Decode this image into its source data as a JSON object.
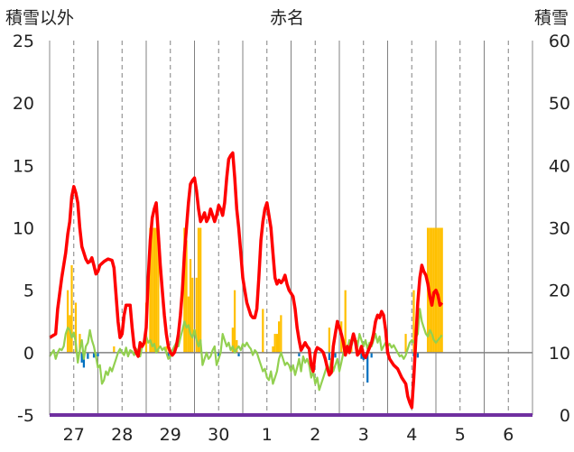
{
  "chart_data": {
    "type": "bar+line",
    "title": "赤名",
    "ylabel_left": "積雪以外",
    "ylabel_right": "積雪",
    "ylim_left": [
      -5,
      25
    ],
    "ylim_right": [
      0,
      60
    ],
    "yticks_left": [
      "25",
      "20",
      "15",
      "10",
      "5",
      "0",
      "-5"
    ],
    "yticks_right": [
      "60",
      "50",
      "40",
      "30",
      "20",
      "10",
      "0"
    ],
    "categories": [
      "27",
      "28",
      "29",
      "30",
      "1",
      "2",
      "3",
      "4",
      "5",
      "6"
    ],
    "x_range": [
      0,
      240
    ],
    "colors": {
      "red_line": "#ff0000",
      "green_line": "#92d050",
      "orange_bar": "#ffc000",
      "blue_bar": "#0070c0",
      "baseline": "#7030a0",
      "zero_line": "#808080",
      "grid": "#808080"
    },
    "red_series": [
      [
        0,
        1.2
      ],
      [
        3,
        1.5
      ],
      [
        4,
        3.5
      ],
      [
        6,
        6
      ],
      [
        8,
        8
      ],
      [
        9,
        9.5
      ],
      [
        10,
        10.5
      ],
      [
        11,
        12.5
      ],
      [
        12,
        13.3
      ],
      [
        13,
        12.8
      ],
      [
        14,
        12
      ],
      [
        15,
        10
      ],
      [
        16,
        8.5
      ],
      [
        17,
        8
      ],
      [
        18,
        7.5
      ],
      [
        19,
        7.2
      ],
      [
        20,
        7.3
      ],
      [
        21,
        7.6
      ],
      [
        22,
        7
      ],
      [
        23,
        6.3
      ],
      [
        24,
        6.5
      ],
      [
        25,
        7
      ],
      [
        27,
        7.3
      ],
      [
        29,
        7.5
      ],
      [
        31,
        7.4
      ],
      [
        32,
        6.8
      ],
      [
        34,
        2.5
      ],
      [
        35,
        1.2
      ],
      [
        36,
        1.5
      ],
      [
        37,
        3
      ],
      [
        38,
        3.8
      ],
      [
        40,
        3.8
      ],
      [
        41,
        2
      ],
      [
        42,
        0.5
      ],
      [
        43,
        0
      ],
      [
        44,
        -0.3
      ],
      [
        45,
        0.8
      ],
      [
        46,
        0.5
      ],
      [
        47,
        0.8
      ],
      [
        48,
        2
      ],
      [
        49,
        6
      ],
      [
        50,
        9
      ],
      [
        51,
        10.8
      ],
      [
        52,
        11.5
      ],
      [
        53,
        12
      ],
      [
        54,
        9.5
      ],
      [
        55,
        7
      ],
      [
        56,
        5
      ],
      [
        57,
        3
      ],
      [
        58,
        1.5
      ],
      [
        59,
        0.5
      ],
      [
        60,
        0
      ],
      [
        61,
        -0.2
      ],
      [
        62,
        0
      ],
      [
        63,
        0.5
      ],
      [
        64,
        1.5
      ],
      [
        65,
        3
      ],
      [
        66,
        5
      ],
      [
        67,
        8
      ],
      [
        68,
        10
      ],
      [
        69,
        12
      ],
      [
        70,
        13.5
      ],
      [
        71,
        13.8
      ],
      [
        72,
        14
      ],
      [
        73,
        13
      ],
      [
        74,
        11.5
      ],
      [
        75,
        10.5
      ],
      [
        76,
        10.8
      ],
      [
        77,
        11.2
      ],
      [
        78,
        10.5
      ],
      [
        79,
        10.8
      ],
      [
        80,
        11.5
      ],
      [
        81,
        11
      ],
      [
        82,
        10.5
      ],
      [
        83,
        11
      ],
      [
        84,
        11.8
      ],
      [
        85,
        11.5
      ],
      [
        86,
        11
      ],
      [
        87,
        12
      ],
      [
        88,
        14
      ],
      [
        89,
        15.5
      ],
      [
        90,
        15.8
      ],
      [
        91,
        16
      ],
      [
        92,
        14
      ],
      [
        93,
        11.5
      ],
      [
        94,
        10
      ],
      [
        95,
        8
      ],
      [
        96,
        6
      ],
      [
        97,
        5
      ],
      [
        98,
        4
      ],
      [
        99,
        3.5
      ],
      [
        100,
        3
      ],
      [
        101,
        2.8
      ],
      [
        102,
        2.8
      ],
      [
        103,
        3.5
      ],
      [
        104,
        6
      ],
      [
        105,
        9
      ],
      [
        106,
        10.5
      ],
      [
        107,
        11.5
      ],
      [
        108,
        12
      ],
      [
        109,
        11
      ],
      [
        110,
        10
      ],
      [
        111,
        8
      ],
      [
        112,
        6
      ],
      [
        113,
        5.5
      ],
      [
        114,
        5.8
      ],
      [
        115,
        5.6
      ],
      [
        116,
        5.8
      ],
      [
        117,
        6.2
      ],
      [
        118,
        5.5
      ],
      [
        119,
        5
      ],
      [
        121,
        4.5
      ],
      [
        122,
        3.5
      ],
      [
        123,
        2
      ],
      [
        124,
        1
      ],
      [
        125,
        0.2
      ],
      [
        126,
        0.5
      ],
      [
        127,
        0.8
      ],
      [
        128,
        0.5
      ],
      [
        129,
        0.3
      ],
      [
        130,
        -1
      ],
      [
        131,
        -1.5
      ],
      [
        132,
        0
      ],
      [
        133,
        0.4
      ],
      [
        134,
        0.3
      ],
      [
        135,
        0.2
      ],
      [
        136,
        0
      ],
      [
        137,
        -0.5
      ],
      [
        138,
        -1.2
      ],
      [
        139,
        -1.8
      ],
      [
        140,
        -1.6
      ],
      [
        141,
        0.5
      ],
      [
        142,
        1.5
      ],
      [
        143,
        2.5
      ],
      [
        144,
        2
      ],
      [
        145,
        1.5
      ],
      [
        146,
        0.8
      ],
      [
        147,
        -0.2
      ],
      [
        148,
        0.5
      ],
      [
        149,
        0
      ],
      [
        150,
        0.8
      ],
      [
        151,
        1.5
      ],
      [
        152,
        0.9
      ],
      [
        153,
        -0.2
      ],
      [
        154,
        0
      ],
      [
        155,
        0.5
      ],
      [
        156,
        -0.2
      ],
      [
        157,
        -0.4
      ],
      [
        158,
        0
      ],
      [
        160,
        0.8
      ],
      [
        161,
        1.5
      ],
      [
        162,
        2.5
      ],
      [
        163,
        3
      ],
      [
        164,
        2.8
      ],
      [
        165,
        3.3
      ],
      [
        166,
        3
      ],
      [
        167,
        1.8
      ],
      [
        168,
        0
      ],
      [
        169,
        -0.5
      ],
      [
        171,
        -1
      ],
      [
        173,
        -1.3
      ],
      [
        175,
        -2
      ],
      [
        177,
        -2.5
      ],
      [
        178,
        -3.5
      ],
      [
        179,
        -4
      ],
      [
        180,
        -4.4
      ],
      [
        181,
        -2
      ],
      [
        182,
        1
      ],
      [
        183,
        4
      ],
      [
        184,
        6
      ],
      [
        185,
        7
      ],
      [
        186,
        6.5
      ],
      [
        187,
        6.2
      ],
      [
        188,
        5.5
      ],
      [
        189,
        4.5
      ],
      [
        190,
        3.8
      ],
      [
        191,
        4.8
      ],
      [
        192,
        5
      ],
      [
        193,
        4.6
      ],
      [
        194,
        3.8
      ],
      [
        195,
        4
      ]
    ],
    "green_series": [
      [
        0,
        -0.3
      ],
      [
        2,
        0.2
      ],
      [
        3,
        -0.5
      ],
      [
        4,
        0
      ],
      [
        5,
        0.3
      ],
      [
        6,
        0.2
      ],
      [
        7,
        0.5
      ],
      [
        8,
        1.5
      ],
      [
        9,
        2
      ],
      [
        10,
        1.8
      ],
      [
        11,
        1.2
      ],
      [
        12,
        1.6
      ],
      [
        13,
        0.8
      ],
      [
        14,
        -0.8
      ],
      [
        15,
        0.2
      ],
      [
        16,
        1
      ],
      [
        17,
        -0.5
      ],
      [
        18,
        0.5
      ],
      [
        19,
        0.8
      ],
      [
        20,
        1.8
      ],
      [
        21,
        1
      ],
      [
        22,
        0.5
      ],
      [
        23,
        -0.3
      ],
      [
        24,
        -1.2
      ],
      [
        25,
        -1
      ],
      [
        26,
        -2.5
      ],
      [
        27,
        -2.2
      ],
      [
        28,
        -1.5
      ],
      [
        29,
        -1.8
      ],
      [
        30,
        -1.2
      ],
      [
        31,
        -1.5
      ],
      [
        32,
        -1
      ],
      [
        33,
        -0.5
      ],
      [
        34,
        0
      ],
      [
        35,
        0.3
      ],
      [
        36,
        0
      ],
      [
        37,
        -0.2
      ],
      [
        38,
        0.4
      ],
      [
        39,
        -0.3
      ],
      [
        40,
        0.2
      ],
      [
        41,
        0.1
      ],
      [
        42,
        -0.2
      ],
      [
        43,
        0.3
      ],
      [
        44,
        0
      ],
      [
        45,
        -0.3
      ],
      [
        46,
        0.5
      ],
      [
        47,
        1
      ],
      [
        48,
        1.3
      ],
      [
        49,
        0.8
      ],
      [
        50,
        1
      ],
      [
        51,
        0.5
      ],
      [
        52,
        0.7
      ],
      [
        53,
        0
      ],
      [
        54,
        0.3
      ],
      [
        55,
        0.5
      ],
      [
        56,
        0.2
      ],
      [
        57,
        0.4
      ],
      [
        58,
        0
      ],
      [
        59,
        -0.5
      ],
      [
        60,
        -0.3
      ],
      [
        61,
        0.2
      ],
      [
        62,
        0.5
      ],
      [
        63,
        0.8
      ],
      [
        64,
        0.5
      ],
      [
        65,
        1.2
      ],
      [
        66,
        1.8
      ],
      [
        67,
        2.5
      ],
      [
        68,
        2
      ],
      [
        69,
        2.2
      ],
      [
        70,
        1.5
      ],
      [
        71,
        1.2
      ],
      [
        72,
        1.8
      ],
      [
        73,
        1
      ],
      [
        74,
        0.5
      ],
      [
        75,
        1
      ],
      [
        76,
        -1
      ],
      [
        77,
        -0.5
      ],
      [
        78,
        0
      ],
      [
        79,
        -0.5
      ],
      [
        80,
        -0.3
      ],
      [
        81,
        0.2
      ],
      [
        82,
        0.5
      ],
      [
        83,
        -1
      ],
      [
        84,
        -0.5
      ],
      [
        85,
        0
      ],
      [
        86,
        1.5
      ],
      [
        87,
        1
      ],
      [
        88,
        0.5
      ],
      [
        89,
        0.8
      ],
      [
        90,
        0.2
      ],
      [
        91,
        0.5
      ],
      [
        92,
        0
      ],
      [
        93,
        0.3
      ],
      [
        94,
        0.5
      ],
      [
        95,
        0.2
      ],
      [
        96,
        0.7
      ],
      [
        97,
        0.5
      ],
      [
        98,
        0.8
      ],
      [
        99,
        0.5
      ],
      [
        100,
        0.3
      ],
      [
        101,
        -0.2
      ],
      [
        102,
        0.2
      ],
      [
        103,
        0
      ],
      [
        104,
        -0.5
      ],
      [
        105,
        -1
      ],
      [
        106,
        -1.5
      ],
      [
        107,
        -1.3
      ],
      [
        108,
        -2
      ],
      [
        109,
        -2.2
      ],
      [
        110,
        -1.5
      ],
      [
        111,
        -2.5
      ],
      [
        112,
        -2
      ],
      [
        113,
        -1.5
      ],
      [
        114,
        -0.5
      ],
      [
        115,
        0
      ],
      [
        116,
        -0.5
      ],
      [
        117,
        -1
      ],
      [
        118,
        -0.8
      ],
      [
        119,
        -1
      ],
      [
        120,
        -1.5
      ],
      [
        121,
        -1
      ],
      [
        122,
        -1.8
      ],
      [
        123,
        -1.2
      ],
      [
        124,
        -0.5
      ],
      [
        125,
        -1.5
      ],
      [
        126,
        -0.3
      ],
      [
        127,
        -0.8
      ],
      [
        128,
        -0.5
      ],
      [
        129,
        -1
      ],
      [
        130,
        -2
      ],
      [
        131,
        -1.5
      ],
      [
        132,
        -2.5
      ],
      [
        133,
        -2
      ],
      [
        134,
        -3
      ],
      [
        135,
        -2.5
      ],
      [
        136,
        -2
      ],
      [
        137,
        -1.5
      ],
      [
        138,
        -1
      ],
      [
        139,
        -1.5
      ],
      [
        140,
        -0.5
      ],
      [
        141,
        -1.5
      ],
      [
        142,
        -1
      ],
      [
        143,
        -0.5
      ],
      [
        144,
        -1.5
      ],
      [
        145,
        -0.8
      ],
      [
        146,
        0
      ],
      [
        147,
        0.5
      ],
      [
        148,
        0.3
      ],
      [
        149,
        1
      ],
      [
        150,
        0.5
      ],
      [
        151,
        1.2
      ],
      [
        152,
        0.8
      ],
      [
        153,
        0.5
      ],
      [
        154,
        1.5
      ],
      [
        155,
        1
      ],
      [
        156,
        0.5
      ],
      [
        157,
        1
      ],
      [
        158,
        0.3
      ],
      [
        159,
        0.8
      ],
      [
        160,
        0.5
      ],
      [
        161,
        1
      ],
      [
        162,
        1.5
      ],
      [
        163,
        0.8
      ],
      [
        164,
        1.3
      ],
      [
        165,
        0.2
      ],
      [
        166,
        0.5
      ],
      [
        167,
        0.8
      ],
      [
        168,
        0.5
      ],
      [
        169,
        0.7
      ],
      [
        170,
        0.4
      ],
      [
        171,
        0.6
      ],
      [
        172,
        0.3
      ],
      [
        173,
        0
      ],
      [
        174,
        -0.3
      ],
      [
        175,
        -0.2
      ],
      [
        176,
        -0.5
      ],
      [
        177,
        -0.2
      ],
      [
        178,
        0.3
      ],
      [
        179,
        0.8
      ],
      [
        180,
        1
      ],
      [
        181,
        0.8
      ],
      [
        182,
        1.2
      ],
      [
        183,
        1.5
      ],
      [
        184,
        3.5
      ],
      [
        185,
        2.5
      ],
      [
        186,
        2
      ],
      [
        187,
        1.5
      ],
      [
        188,
        1.3
      ],
      [
        189,
        1.8
      ],
      [
        190,
        1.5
      ],
      [
        191,
        1
      ],
      [
        192,
        0.8
      ],
      [
        193,
        1
      ],
      [
        194,
        1.2
      ],
      [
        195,
        1.4
      ]
    ],
    "orange_bars_right_axis": [
      [
        9,
        20
      ],
      [
        10,
        16
      ],
      [
        11,
        24
      ],
      [
        13,
        18
      ],
      [
        14,
        10
      ],
      [
        15,
        13
      ],
      [
        32,
        11
      ],
      [
        48,
        18
      ],
      [
        50,
        30
      ],
      [
        51,
        30
      ],
      [
        52,
        30
      ],
      [
        53,
        30
      ],
      [
        54,
        30
      ],
      [
        58,
        11
      ],
      [
        67,
        30
      ],
      [
        68,
        28
      ],
      [
        69,
        19
      ],
      [
        70,
        25
      ],
      [
        71,
        22
      ],
      [
        73,
        22
      ],
      [
        74,
        30
      ],
      [
        75,
        30
      ],
      [
        91,
        14
      ],
      [
        92,
        20
      ],
      [
        93,
        12
      ],
      [
        106,
        17
      ],
      [
        111,
        11
      ],
      [
        112,
        13
      ],
      [
        113,
        13
      ],
      [
        114,
        15
      ],
      [
        115,
        16
      ],
      [
        139,
        14
      ],
      [
        145,
        15
      ],
      [
        147,
        20
      ],
      [
        150,
        12
      ],
      [
        153,
        12
      ],
      [
        177,
        13
      ],
      [
        181,
        20
      ],
      [
        188,
        30
      ],
      [
        189,
        30
      ],
      [
        190,
        30
      ],
      [
        191,
        30
      ],
      [
        192,
        30
      ],
      [
        193,
        30
      ],
      [
        194,
        30
      ],
      [
        195,
        30
      ]
    ],
    "blue_bars": [
      [
        16,
        -0.8
      ],
      [
        17,
        -1.2
      ],
      [
        19,
        -0.5
      ],
      [
        22,
        -0.4
      ],
      [
        24,
        -0.3
      ],
      [
        59,
        -0.3
      ],
      [
        84,
        -0.3
      ],
      [
        94,
        -0.3
      ],
      [
        124,
        -0.3
      ],
      [
        139,
        -0.6
      ],
      [
        142,
        -0.4
      ],
      [
        155,
        -0.5
      ],
      [
        156,
        -0.6
      ],
      [
        158,
        -2.4
      ],
      [
        160,
        -0.4
      ],
      [
        181,
        -0.3
      ],
      [
        183,
        -0.4
      ]
    ]
  }
}
